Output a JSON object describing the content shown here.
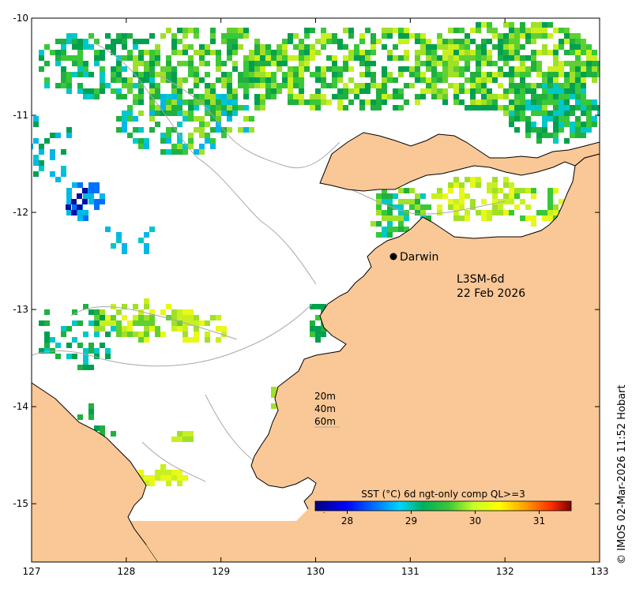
{
  "map": {
    "product": "L3SM-6d",
    "date": "22 Feb 2026",
    "place_label": "Darwin",
    "depth_contours": [
      "20m",
      "40m",
      "60m"
    ],
    "colorbar_title": "SST (°C) 6d ngt-only comp QL>=3",
    "colorbar_ticks": [
      "28",
      "29",
      "30",
      "31"
    ],
    "credit": "© IMOS 02-Mar-2026 11:52 Hobart",
    "x_ticks": [
      "127",
      "128",
      "129",
      "130",
      "131",
      "132",
      "133"
    ],
    "y_ticks": [
      "-10",
      "-11",
      "-12",
      "-13",
      "-14",
      "-15"
    ],
    "colors": {
      "land": "#f9c896",
      "ocean_nodata": "#ffffff",
      "contour": "#a8a8a8",
      "coastline": "#000000"
    }
  },
  "chart_data": {
    "type": "heatmap",
    "title": "L3SM-6d 22 Feb 2026",
    "colorbar_label": "SST (°C) 6d ngt-only comp QL>=3",
    "xlim": [
      127,
      133
    ],
    "ylim": [
      -15.6,
      -10
    ],
    "colorbar_range": [
      27.5,
      31.5
    ],
    "colormap": "jet",
    "marked_location": {
      "name": "Darwin",
      "lon": 130.84,
      "lat": -12.46
    }
  }
}
